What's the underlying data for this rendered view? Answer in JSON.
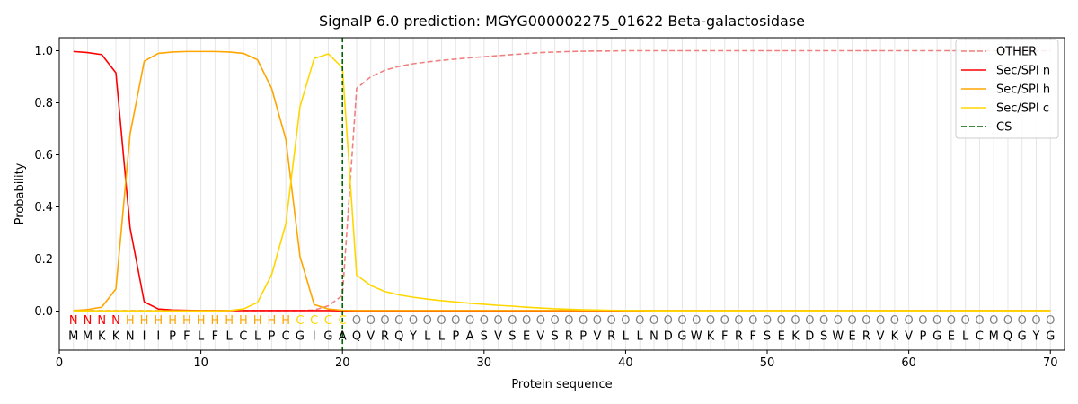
{
  "chart_data": {
    "type": "line",
    "title": "SignalP 6.0 prediction: MGYG000002275_01622 Beta-galactosidase",
    "xlabel": "Protein sequence",
    "ylabel": "Probability",
    "xlim": [
      0,
      71
    ],
    "ylim": [
      -0.15,
      1.05
    ],
    "xticks": [
      0,
      10,
      20,
      30,
      40,
      50,
      60,
      70
    ],
    "yticks": [
      0.0,
      0.2,
      0.4,
      0.6,
      0.8,
      1.0
    ],
    "xtick_labels": [
      "0",
      "10",
      "20",
      "30",
      "40",
      "50",
      "60",
      "70"
    ],
    "ytick_labels": [
      "0.0",
      "0.2",
      "0.4",
      "0.6",
      "0.8",
      "1.0"
    ],
    "legend_position": "top-right",
    "residues": [
      "M",
      "M",
      "K",
      "K",
      "N",
      "I",
      "I",
      "P",
      "F",
      "L",
      "F",
      "L",
      "C",
      "L",
      "P",
      "C",
      "G",
      "I",
      "G",
      "A",
      "Q",
      "V",
      "R",
      "Q",
      "Y",
      "L",
      "L",
      "P",
      "A",
      "S",
      "V",
      "S",
      "E",
      "V",
      "S",
      "R",
      "P",
      "V",
      "R",
      "L",
      "L",
      "N",
      "D",
      "G",
      "W",
      "K",
      "F",
      "R",
      "F",
      "S",
      "E",
      "K",
      "D",
      "S",
      "W",
      "E",
      "R",
      "V",
      "K",
      "V",
      "P",
      "G",
      "E",
      "L",
      "C",
      "M",
      "Q",
      "G",
      "Y",
      "G"
    ],
    "labels": [
      "N",
      "N",
      "N",
      "N",
      "H",
      "H",
      "H",
      "H",
      "H",
      "H",
      "H",
      "H",
      "H",
      "H",
      "H",
      "H",
      "C",
      "C",
      "C",
      "C",
      "O",
      "O",
      "O",
      "O",
      "O",
      "O",
      "O",
      "O",
      "O",
      "O",
      "O",
      "O",
      "O",
      "O",
      "O",
      "O",
      "O",
      "O",
      "O",
      "O",
      "O",
      "O",
      "O",
      "O",
      "O",
      "O",
      "O",
      "O",
      "O",
      "O",
      "O",
      "O",
      "O",
      "O",
      "O",
      "O",
      "O",
      "O",
      "O",
      "O",
      "O",
      "O",
      "O",
      "O",
      "O",
      "O",
      "O",
      "O",
      "O",
      "O"
    ],
    "label_colors": {
      "N": "#ff0000",
      "H": "#ffa500",
      "C": "#ffd700",
      "O": "#808080"
    },
    "x": [
      1,
      2,
      3,
      4,
      5,
      6,
      7,
      8,
      9,
      10,
      11,
      12,
      13,
      14,
      15,
      16,
      17,
      18,
      19,
      20,
      21,
      22,
      23,
      24,
      25,
      26,
      27,
      28,
      29,
      30,
      31,
      32,
      33,
      34,
      35,
      36,
      37,
      38,
      39,
      40,
      41,
      42,
      43,
      44,
      45,
      46,
      47,
      48,
      49,
      50,
      51,
      52,
      53,
      54,
      55,
      56,
      57,
      58,
      59,
      60,
      61,
      62,
      63,
      64,
      65,
      66,
      67,
      68,
      69,
      70
    ],
    "series": [
      {
        "name": "OTHER",
        "color": "#f08080",
        "dash": "dashed",
        "values": [
          0.003,
          0.002,
          0.002,
          0.002,
          0.002,
          0.002,
          0.002,
          0.002,
          0.002,
          0.002,
          0.002,
          0.002,
          0.002,
          0.002,
          0.002,
          0.002,
          0.002,
          0.004,
          0.02,
          0.06,
          0.855,
          0.9,
          0.925,
          0.94,
          0.95,
          0.957,
          0.963,
          0.968,
          0.973,
          0.977,
          0.981,
          0.985,
          0.989,
          0.993,
          0.995,
          0.997,
          0.998,
          0.999,
          0.999,
          1.0,
          1.0,
          1.0,
          1.0,
          1.0,
          1.0,
          1.0,
          1.0,
          1.0,
          1.0,
          1.0,
          1.0,
          1.0,
          1.0,
          1.0,
          1.0,
          1.0,
          1.0,
          1.0,
          1.0,
          1.0,
          1.0,
          1.0,
          1.0,
          1.0,
          1.0,
          1.0,
          1.0,
          1.0,
          1.0,
          1.0
        ]
      },
      {
        "name": "Sec/SPI n",
        "color": "#ff0000",
        "dash": "solid",
        "values": [
          0.997,
          0.993,
          0.985,
          0.915,
          0.32,
          0.035,
          0.008,
          0.004,
          0.003,
          0.002,
          0.002,
          0.002,
          0.002,
          0.002,
          0.002,
          0.002,
          0.002,
          0.002,
          0.002,
          0.001,
          0.001,
          0.001,
          0.001,
          0.001,
          0.001,
          0.001,
          0.001,
          0.001,
          0.001,
          0.001,
          0.001,
          0.001,
          0.001,
          0.001,
          0.001,
          0.001,
          0.001,
          0.001,
          0.001,
          0.001,
          0.001,
          0.001,
          0.001,
          0.001,
          0.001,
          0.001,
          0.001,
          0.001,
          0.001,
          0.001,
          0.001,
          0.001,
          0.001,
          0.001,
          0.001,
          0.001,
          0.001,
          0.001,
          0.001,
          0.001,
          0.001,
          0.001,
          0.001,
          0.001,
          0.001,
          0.001,
          0.001,
          0.001,
          0.001,
          0.001
        ]
      },
      {
        "name": "Sec/SPI h",
        "color": "#ffa500",
        "dash": "solid",
        "values": [
          0.002,
          0.006,
          0.015,
          0.085,
          0.68,
          0.96,
          0.99,
          0.995,
          0.997,
          0.997,
          0.997,
          0.995,
          0.99,
          0.965,
          0.855,
          0.66,
          0.21,
          0.025,
          0.008,
          0.003,
          0.002,
          0.002,
          0.002,
          0.002,
          0.002,
          0.002,
          0.002,
          0.002,
          0.002,
          0.002,
          0.002,
          0.002,
          0.002,
          0.002,
          0.002,
          0.002,
          0.002,
          0.002,
          0.002,
          0.002,
          0.002,
          0.002,
          0.002,
          0.002,
          0.002,
          0.002,
          0.002,
          0.002,
          0.002,
          0.002,
          0.002,
          0.002,
          0.002,
          0.002,
          0.002,
          0.002,
          0.002,
          0.002,
          0.002,
          0.002,
          0.002,
          0.002,
          0.002,
          0.002,
          0.002,
          0.002,
          0.002,
          0.002,
          0.002,
          0.002
        ]
      },
      {
        "name": "Sec/SPI c",
        "color": "#ffd700",
        "dash": "solid",
        "values": [
          0.001,
          0.001,
          0.001,
          0.001,
          0.001,
          0.001,
          0.001,
          0.001,
          0.001,
          0.001,
          0.001,
          0.002,
          0.008,
          0.033,
          0.14,
          0.335,
          0.785,
          0.97,
          0.988,
          0.935,
          0.138,
          0.098,
          0.075,
          0.062,
          0.053,
          0.046,
          0.04,
          0.035,
          0.03,
          0.026,
          0.022,
          0.019,
          0.015,
          0.012,
          0.009,
          0.007,
          0.005,
          0.004,
          0.003,
          0.002,
          0.002,
          0.001,
          0.001,
          0.001,
          0.001,
          0.001,
          0.001,
          0.001,
          0.001,
          0.001,
          0.001,
          0.001,
          0.001,
          0.001,
          0.001,
          0.001,
          0.001,
          0.001,
          0.001,
          0.001,
          0.001,
          0.001,
          0.001,
          0.001,
          0.001,
          0.001,
          0.001,
          0.001,
          0.001,
          0.001
        ]
      }
    ],
    "cs": {
      "name": "CS",
      "x": 20,
      "color": "#006400",
      "dash": "dashed"
    }
  }
}
